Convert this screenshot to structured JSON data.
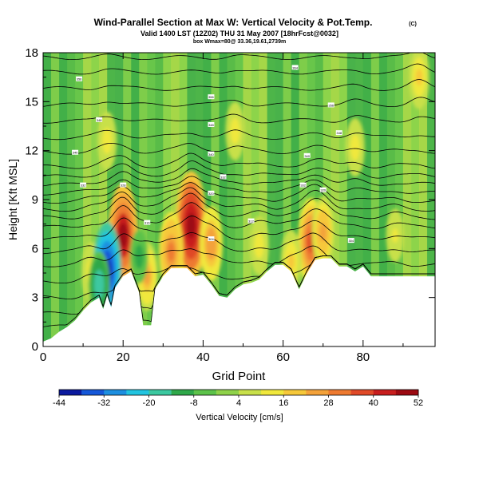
{
  "title": "Wind-Parallel Section at Max W: Vertical Velocity & Pot.Temp.",
  "copyright_mark": "(C)",
  "subtitle": "Valid 1400 LST (12Z02) THU 31 May 2007 [18hrFcst@0032]",
  "subtitle_note": "box Wmax=80@ 33.36,19.61,2739m",
  "chart_data": {
    "type": "heatmap",
    "title": "Wind-Parallel Section at Max W: Vertical Velocity & Pot.Temp.",
    "xlabel": "Grid Point",
    "ylabel": "Height [Kft MSL]",
    "xlim": [
      0,
      98
    ],
    "ylim": [
      0,
      18
    ],
    "x_ticks": [
      0,
      20,
      40,
      60,
      80
    ],
    "x_tick_labels": [
      "0",
      "20",
      "40",
      "60",
      "80"
    ],
    "y_ticks": [
      0,
      3,
      6,
      9,
      12,
      15,
      18
    ],
    "y_tick_labels": [
      "0",
      "3",
      "6",
      "9",
      "12",
      "15",
      "18"
    ],
    "colorbar": {
      "label": "Vertical Velocity [cm/s]",
      "tick_labels": [
        "-44",
        "-32",
        "-20",
        "-8",
        "4",
        "16",
        "28",
        "40",
        "52"
      ],
      "min": -44,
      "max": 52,
      "colors": [
        "#0b1a9e",
        "#1557d8",
        "#1d8fe0",
        "#22c4e0",
        "#3cc8a0",
        "#2fa84a",
        "#5cc24a",
        "#8fd24a",
        "#c8e04a",
        "#f0e83c",
        "#f6c83a",
        "#f4a23a",
        "#ee7a30",
        "#e04a28",
        "#c81e1e",
        "#9c0a12"
      ]
    },
    "terrain": [
      [
        0,
        0.3
      ],
      [
        2,
        0.5
      ],
      [
        4,
        0.9
      ],
      [
        6,
        1.2
      ],
      [
        8,
        1.6
      ],
      [
        10,
        2.2
      ],
      [
        12,
        2.7
      ],
      [
        14,
        3.0
      ],
      [
        15,
        2.3
      ],
      [
        16,
        3.1
      ],
      [
        17,
        2.4
      ],
      [
        18,
        3.6
      ],
      [
        20,
        4.3
      ],
      [
        22,
        4.6
      ],
      [
        24,
        3.3
      ],
      [
        25,
        1.3
      ],
      [
        27,
        1.3
      ],
      [
        28,
        3.5
      ],
      [
        30,
        4.3
      ],
      [
        32,
        4.8
      ],
      [
        34,
        4.8
      ],
      [
        36,
        4.8
      ],
      [
        38,
        4.3
      ],
      [
        40,
        4.4
      ],
      [
        42,
        3.8
      ],
      [
        44,
        3.1
      ],
      [
        46,
        3.0
      ],
      [
        48,
        3.5
      ],
      [
        50,
        3.8
      ],
      [
        52,
        3.9
      ],
      [
        54,
        4.1
      ],
      [
        56,
        4.6
      ],
      [
        58,
        5.0
      ],
      [
        60,
        5.0
      ],
      [
        62,
        4.6
      ],
      [
        64,
        3.5
      ],
      [
        66,
        4.5
      ],
      [
        68,
        5.3
      ],
      [
        70,
        5.4
      ],
      [
        72,
        5.4
      ],
      [
        74,
        4.9
      ],
      [
        76,
        4.9
      ],
      [
        78,
        4.6
      ],
      [
        80,
        4.9
      ],
      [
        82,
        4.3
      ],
      [
        84,
        4.3
      ],
      [
        90,
        4.3
      ],
      [
        98,
        4.3
      ]
    ],
    "updrafts": [
      {
        "x": 20,
        "z": 6.8,
        "w": 48
      },
      {
        "x": 37,
        "z": 7.4,
        "w": 52
      },
      {
        "x": 32,
        "z": 5.8,
        "w": 30
      },
      {
        "x": 67,
        "z": 6.4,
        "w": 36
      },
      {
        "x": 70,
        "z": 7.0,
        "w": 24
      },
      {
        "x": 62,
        "z": 5.2,
        "w": 18
      },
      {
        "x": 42,
        "z": 6.3,
        "w": 26
      },
      {
        "x": 26,
        "z": 4.3,
        "w": 22
      },
      {
        "x": 12,
        "z": 4.6,
        "w": 14
      },
      {
        "x": 54,
        "z": 6.2,
        "w": 14
      },
      {
        "x": 88,
        "z": 6.8,
        "w": 10
      },
      {
        "x": 94,
        "z": 16.5,
        "w": 18
      },
      {
        "x": 16,
        "z": 12.6,
        "w": 14
      },
      {
        "x": 48,
        "z": 13.2,
        "w": 14
      },
      {
        "x": 78,
        "z": 12.2,
        "w": 14
      }
    ],
    "downdrafts": [
      {
        "x": 16,
        "z": 4.6,
        "w": -44
      },
      {
        "x": 14,
        "z": 3.8,
        "w": -20
      },
      {
        "x": 24,
        "z": 5.5,
        "w": -10
      }
    ],
    "theta_contour_labels": [
      {
        "x": 9,
        "z": 16.4,
        "text": "356"
      },
      {
        "x": 14,
        "z": 13.9,
        "text": "348"
      },
      {
        "x": 8,
        "z": 11.9,
        "text": "340"
      },
      {
        "x": 10,
        "z": 9.9,
        "text": "332"
      },
      {
        "x": 20,
        "z": 9.9,
        "text": "328"
      },
      {
        "x": 26,
        "z": 7.6,
        "text": "316"
      },
      {
        "x": 42,
        "z": 6.6,
        "text": "304"
      },
      {
        "x": 42,
        "z": 9.4,
        "text": "320"
      },
      {
        "x": 45,
        "z": 10.4,
        "text": "332"
      },
      {
        "x": 42,
        "z": 11.8,
        "text": "340"
      },
      {
        "x": 42,
        "z": 13.6,
        "text": "348"
      },
      {
        "x": 42,
        "z": 15.3,
        "text": "356"
      },
      {
        "x": 63,
        "z": 17.1,
        "text": "364"
      },
      {
        "x": 72,
        "z": 14.8,
        "text": "356"
      },
      {
        "x": 74,
        "z": 13.1,
        "text": "348"
      },
      {
        "x": 66,
        "z": 11.7,
        "text": "340"
      },
      {
        "x": 65,
        "z": 9.9,
        "text": "332"
      },
      {
        "x": 70,
        "z": 9.6,
        "text": "320"
      },
      {
        "x": 52,
        "z": 7.7,
        "text": "312"
      },
      {
        "x": 77,
        "z": 6.5,
        "text": "304"
      }
    ],
    "theta_levels": [
      1.2,
      2.0,
      3.0,
      4.0,
      5.0,
      5.8,
      6.6,
      7.3,
      7.9,
      8.4,
      8.9,
      9.4,
      9.9,
      10.4,
      11.0,
      11.9,
      12.8,
      13.8,
      14.8,
      15.8,
      16.8,
      17.7
    ]
  }
}
